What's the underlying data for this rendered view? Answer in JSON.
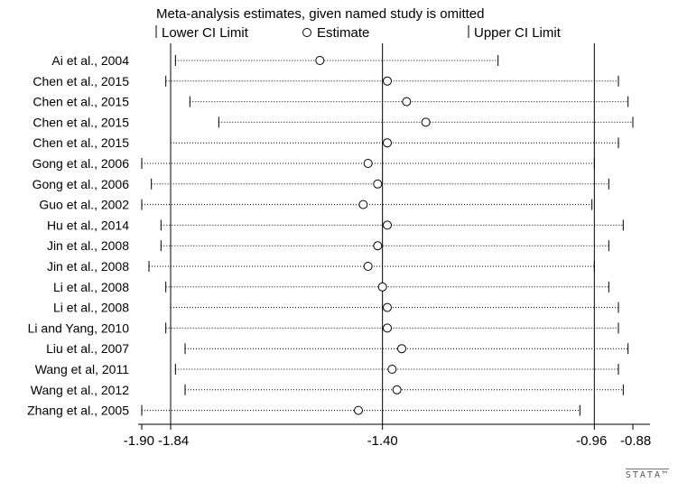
{
  "chart_data": {
    "type": "scatter",
    "title": "Meta-analysis estimates, given named study is omitted",
    "legend": {
      "placement": "top",
      "entries": [
        {
          "symbol": "bar",
          "label": "Lower CI Limit"
        },
        {
          "symbol": "circle",
          "label": "Estimate"
        },
        {
          "symbol": "bar",
          "label": "Upper CI Limit"
        }
      ]
    },
    "x_ticks": [
      {
        "value": -1.9,
        "label": "-1.90"
      },
      {
        "value": -1.84,
        "label": "-1.84"
      },
      {
        "value": -1.4,
        "label": "-1.40"
      },
      {
        "value": -0.96,
        "label": "-0.96"
      },
      {
        "value": -0.88,
        "label": "-0.88"
      }
    ],
    "x_range": [
      -1.9,
      -0.88
    ],
    "reference_lines": [
      -1.84,
      -1.4,
      -0.96
    ],
    "grid": false,
    "studies": [
      {
        "label": "Ai et al., 2004",
        "lower": -1.83,
        "estimate": -1.53,
        "upper": -1.16
      },
      {
        "label": "Chen et al., 2015",
        "lower": -1.85,
        "estimate": -1.39,
        "upper": -0.91
      },
      {
        "label": "Chen et al., 2015",
        "lower": -1.8,
        "estimate": -1.35,
        "upper": -0.89
      },
      {
        "label": "Chen et al., 2015",
        "lower": -1.74,
        "estimate": -1.31,
        "upper": -0.88
      },
      {
        "label": "Chen et al., 2015",
        "lower": -1.84,
        "estimate": -1.39,
        "upper": -0.91
      },
      {
        "label": "Gong et al., 2006",
        "lower": -1.9,
        "estimate": -1.43,
        "upper": -0.96
      },
      {
        "label": "Gong et al., 2006",
        "lower": -1.88,
        "estimate": -1.41,
        "upper": -0.93
      },
      {
        "label": "Guo et al., 2002",
        "lower": -1.9,
        "estimate": -1.44,
        "upper": -0.965
      },
      {
        "label": "Hu et al., 2014",
        "lower": -1.86,
        "estimate": -1.39,
        "upper": -0.9
      },
      {
        "label": "Jin et al., 2008",
        "lower": -1.86,
        "estimate": -1.41,
        "upper": -0.93
      },
      {
        "label": "Jin et al., 2008",
        "lower": -1.885,
        "estimate": -1.43,
        "upper": -0.96
      },
      {
        "label": "Li et al., 2008",
        "lower": -1.85,
        "estimate": -1.4,
        "upper": -0.93
      },
      {
        "label": "Li et al., 2008",
        "lower": -1.84,
        "estimate": -1.39,
        "upper": -0.91
      },
      {
        "label": "Li and Yang, 2010",
        "lower": -1.85,
        "estimate": -1.39,
        "upper": -0.91
      },
      {
        "label": "Liu et al., 2007",
        "lower": -1.81,
        "estimate": -1.36,
        "upper": -0.89
      },
      {
        "label": "Wang et al, 2011",
        "lower": -1.83,
        "estimate": -1.38,
        "upper": -0.91
      },
      {
        "label": "Wang et al., 2012",
        "lower": -1.81,
        "estimate": -1.37,
        "upper": -0.9
      },
      {
        "label": "Zhang et al., 2005",
        "lower": -1.9,
        "estimate": -1.45,
        "upper": -0.99
      }
    ]
  },
  "branding": "STATA™"
}
